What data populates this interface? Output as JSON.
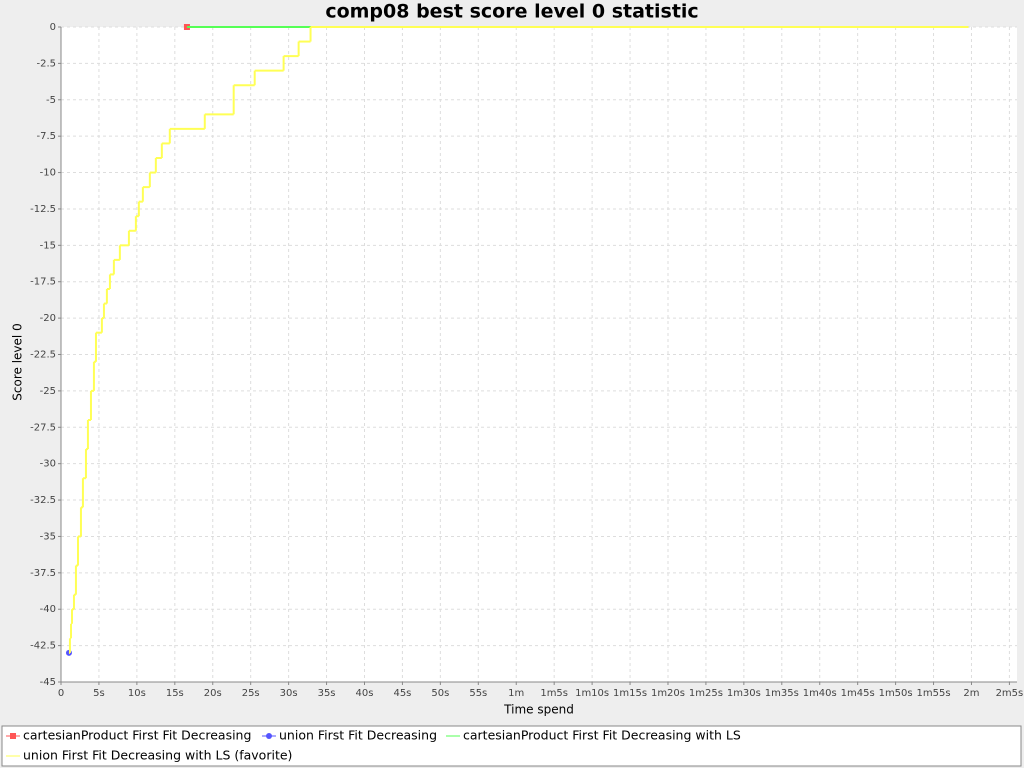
{
  "chart_data": {
    "type": "step",
    "title": "comp08 best score level 0 statistic",
    "x_label": "Time spend",
    "y_label": "Score level 0",
    "xlim": [
      0,
      126
    ],
    "ylim": [
      -45,
      0
    ],
    "xticks": [
      0,
      {
        "value": 5,
        "label": "5s"
      },
      {
        "value": 10,
        "label": "10s"
      },
      {
        "value": 15,
        "label": "15s"
      },
      {
        "value": 20,
        "label": "20s"
      },
      {
        "value": 25,
        "label": "25s"
      },
      {
        "value": 30,
        "label": "30s"
      },
      {
        "value": 35,
        "label": "35s"
      },
      {
        "value": 40,
        "label": "40s"
      },
      {
        "value": 45,
        "label": "45s"
      },
      {
        "value": 50,
        "label": "50s"
      },
      {
        "value": 55,
        "label": "55s"
      },
      {
        "value": 60,
        "label": "1m"
      },
      {
        "value": 65,
        "label": "1m5s"
      },
      {
        "value": 70,
        "label": "1m10s"
      },
      {
        "value": 75,
        "label": "1m15s"
      },
      {
        "value": 80,
        "label": "1m20s"
      },
      {
        "value": 85,
        "label": "1m25s"
      },
      {
        "value": 90,
        "label": "1m30s"
      },
      {
        "value": 95,
        "label": "1m35s"
      },
      {
        "value": 100,
        "label": "1m40s"
      },
      {
        "value": 105,
        "label": "1m45s"
      },
      {
        "value": 110,
        "label": "1m50s"
      },
      {
        "value": 115,
        "label": "1m55s"
      },
      {
        "value": 120,
        "label": "2m"
      },
      {
        "value": 125,
        "label": "2m5s"
      }
    ],
    "yticks": [
      0,
      -2.5,
      -5,
      -7.5,
      -10,
      -12.5,
      -15,
      -17.5,
      -20,
      -22.5,
      -25,
      -27.5,
      -30,
      -32.5,
      -35,
      -37.5,
      -40,
      -42.5,
      -45
    ],
    "grid": true,
    "legend": "bottom",
    "series": [
      {
        "name": "cartesianProduct First Fit Decreasing",
        "color": "#ff5555",
        "shape": "square",
        "x": [
          16.6
        ],
        "values": [
          0
        ]
      },
      {
        "name": "union First Fit Decreasing",
        "color": "#5555ff",
        "shape": "circle",
        "x": [
          1.05
        ],
        "values": [
          -43
        ]
      },
      {
        "name": "cartesianProduct First Fit Decreasing with LS",
        "color": "#55ff55",
        "x": [
          16.6,
          119.6
        ],
        "values": [
          0,
          0
        ]
      },
      {
        "name": "union First Fit Decreasing with LS (favorite)",
        "color": "#ffff55",
        "x": [
          1.05,
          1.18,
          1.32,
          1.45,
          1.71,
          1.97,
          2.24,
          2.63,
          2.89,
          3.29,
          3.55,
          3.95,
          4.34,
          4.61,
          5.39,
          5.66,
          6.05,
          6.45,
          6.97,
          7.76,
          8.95,
          9.87,
          10.26,
          10.79,
          11.71,
          12.5,
          13.29,
          14.34,
          18.95,
          22.76,
          25.53,
          29.34,
          31.32,
          32.89,
          119.6
        ],
        "values": [
          -43,
          -42,
          -41,
          -40,
          -39,
          -37,
          -35,
          -33,
          -31,
          -29,
          -27,
          -25,
          -23,
          -21,
          -20,
          -19,
          -18,
          -17,
          -16,
          -15,
          -14,
          -13,
          -12,
          -11,
          -10,
          -9,
          -8,
          -7,
          -6,
          -4,
          -3,
          -2,
          -1,
          0,
          0
        ]
      }
    ]
  }
}
